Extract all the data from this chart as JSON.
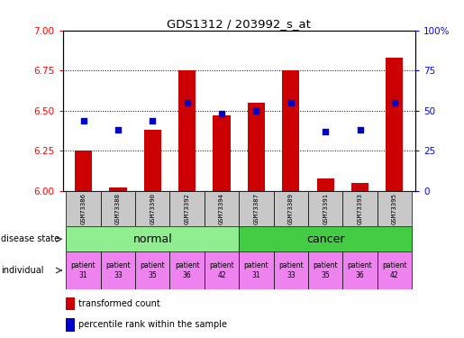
{
  "title": "GDS1312 / 203992_s_at",
  "samples": [
    "GSM73386",
    "GSM73388",
    "GSM73390",
    "GSM73392",
    "GSM73394",
    "GSM73387",
    "GSM73389",
    "GSM73391",
    "GSM73393",
    "GSM73395"
  ],
  "transformed_count": [
    6.25,
    6.02,
    6.38,
    6.75,
    6.47,
    6.55,
    6.75,
    6.08,
    6.05,
    6.83
  ],
  "percentile_rank": [
    44,
    38,
    44,
    55,
    48,
    50,
    55,
    37,
    38,
    55
  ],
  "ylim": [
    6.0,
    7.0
  ],
  "yticks": [
    6.0,
    6.25,
    6.5,
    6.75,
    7.0
  ],
  "y2lim": [
    0,
    100
  ],
  "y2ticks": [
    0,
    25,
    50,
    75,
    100
  ],
  "bar_color": "#cc0000",
  "dot_color": "#0000cc",
  "normal_color": "#90ee90",
  "cancer_color": "#44cc44",
  "individual_color": "#ee82ee",
  "legend_red": "transformed count",
  "legend_blue": "percentile rank within the sample",
  "bar_width": 0.5,
  "box_color": "#c8c8c8"
}
